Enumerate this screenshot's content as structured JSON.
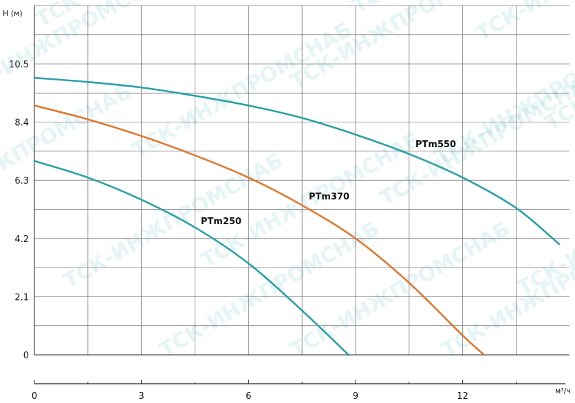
{
  "chart_data": {
    "type": "line",
    "ylabel": "H (м)",
    "xlabel": "м³/ч",
    "xlim": [
      0,
      14.7
    ],
    "ylim": [
      0,
      10.5
    ],
    "x_ticks": [
      0,
      3,
      6,
      9,
      12
    ],
    "y_ticks": [
      0,
      2.1,
      4.2,
      6.3,
      8.4,
      10.5
    ],
    "x_tick_labels": [
      "0",
      "3",
      "6",
      "9",
      "12"
    ],
    "y_tick_labels": [
      "0",
      "2.1",
      "4.2",
      "6.3",
      "8.4",
      "10.5"
    ],
    "grid": true,
    "series": [
      {
        "name": "PTm250",
        "color": "#2aa0a6",
        "x": [
          0,
          1.5,
          3,
          4.5,
          6,
          7.5,
          8.8
        ],
        "y": [
          7.0,
          6.4,
          5.6,
          4.6,
          3.3,
          1.6,
          0
        ]
      },
      {
        "name": "PTm370",
        "color": "#e0782f",
        "x": [
          0,
          1.5,
          3,
          4.5,
          6,
          7.5,
          9,
          10.5,
          12,
          12.6
        ],
        "y": [
          9.0,
          8.5,
          7.9,
          7.2,
          6.4,
          5.4,
          4.2,
          2.6,
          0.7,
          0
        ]
      },
      {
        "name": "PTm550",
        "color": "#2aa0a6",
        "x": [
          0,
          1.5,
          3,
          4.5,
          6,
          7.5,
          9,
          10.5,
          12,
          13.5,
          14.7
        ],
        "y": [
          10.0,
          9.85,
          9.65,
          9.35,
          9.0,
          8.55,
          7.95,
          7.25,
          6.4,
          5.3,
          4.0
        ]
      }
    ]
  },
  "watermark_text": "ТСК-ИНЖПРОМСНАБ"
}
